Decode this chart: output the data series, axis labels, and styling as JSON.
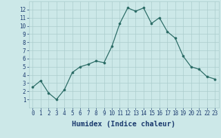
{
  "x": [
    0,
    1,
    2,
    3,
    4,
    5,
    6,
    7,
    8,
    9,
    10,
    11,
    12,
    13,
    14,
    15,
    16,
    17,
    18,
    19,
    20,
    21,
    22,
    23
  ],
  "y": [
    2.5,
    3.3,
    1.8,
    1.0,
    2.2,
    4.3,
    5.0,
    5.3,
    5.7,
    5.5,
    7.5,
    10.3,
    12.2,
    11.8,
    12.2,
    10.3,
    11.0,
    9.3,
    8.5,
    6.3,
    5.0,
    4.7,
    3.8,
    3.5
  ],
  "xlabel": "Humidex (Indice chaleur)",
  "ylim": [
    0,
    13
  ],
  "xlim": [
    -0.5,
    23.5
  ],
  "yticks": [
    1,
    2,
    3,
    4,
    5,
    6,
    7,
    8,
    9,
    10,
    11,
    12
  ],
  "xticks": [
    0,
    1,
    2,
    3,
    4,
    5,
    6,
    7,
    8,
    9,
    10,
    11,
    12,
    13,
    14,
    15,
    16,
    17,
    18,
    19,
    20,
    21,
    22,
    23
  ],
  "line_color": "#2a6b65",
  "marker_color": "#2a6b65",
  "bg_color": "#cce8e8",
  "grid_color": "#aacccc",
  "axis_label_color": "#1a3a6e",
  "tick_label_color": "#1a3a6e",
  "xlabel_fontsize": 7.5,
  "tick_fontsize": 5.5
}
